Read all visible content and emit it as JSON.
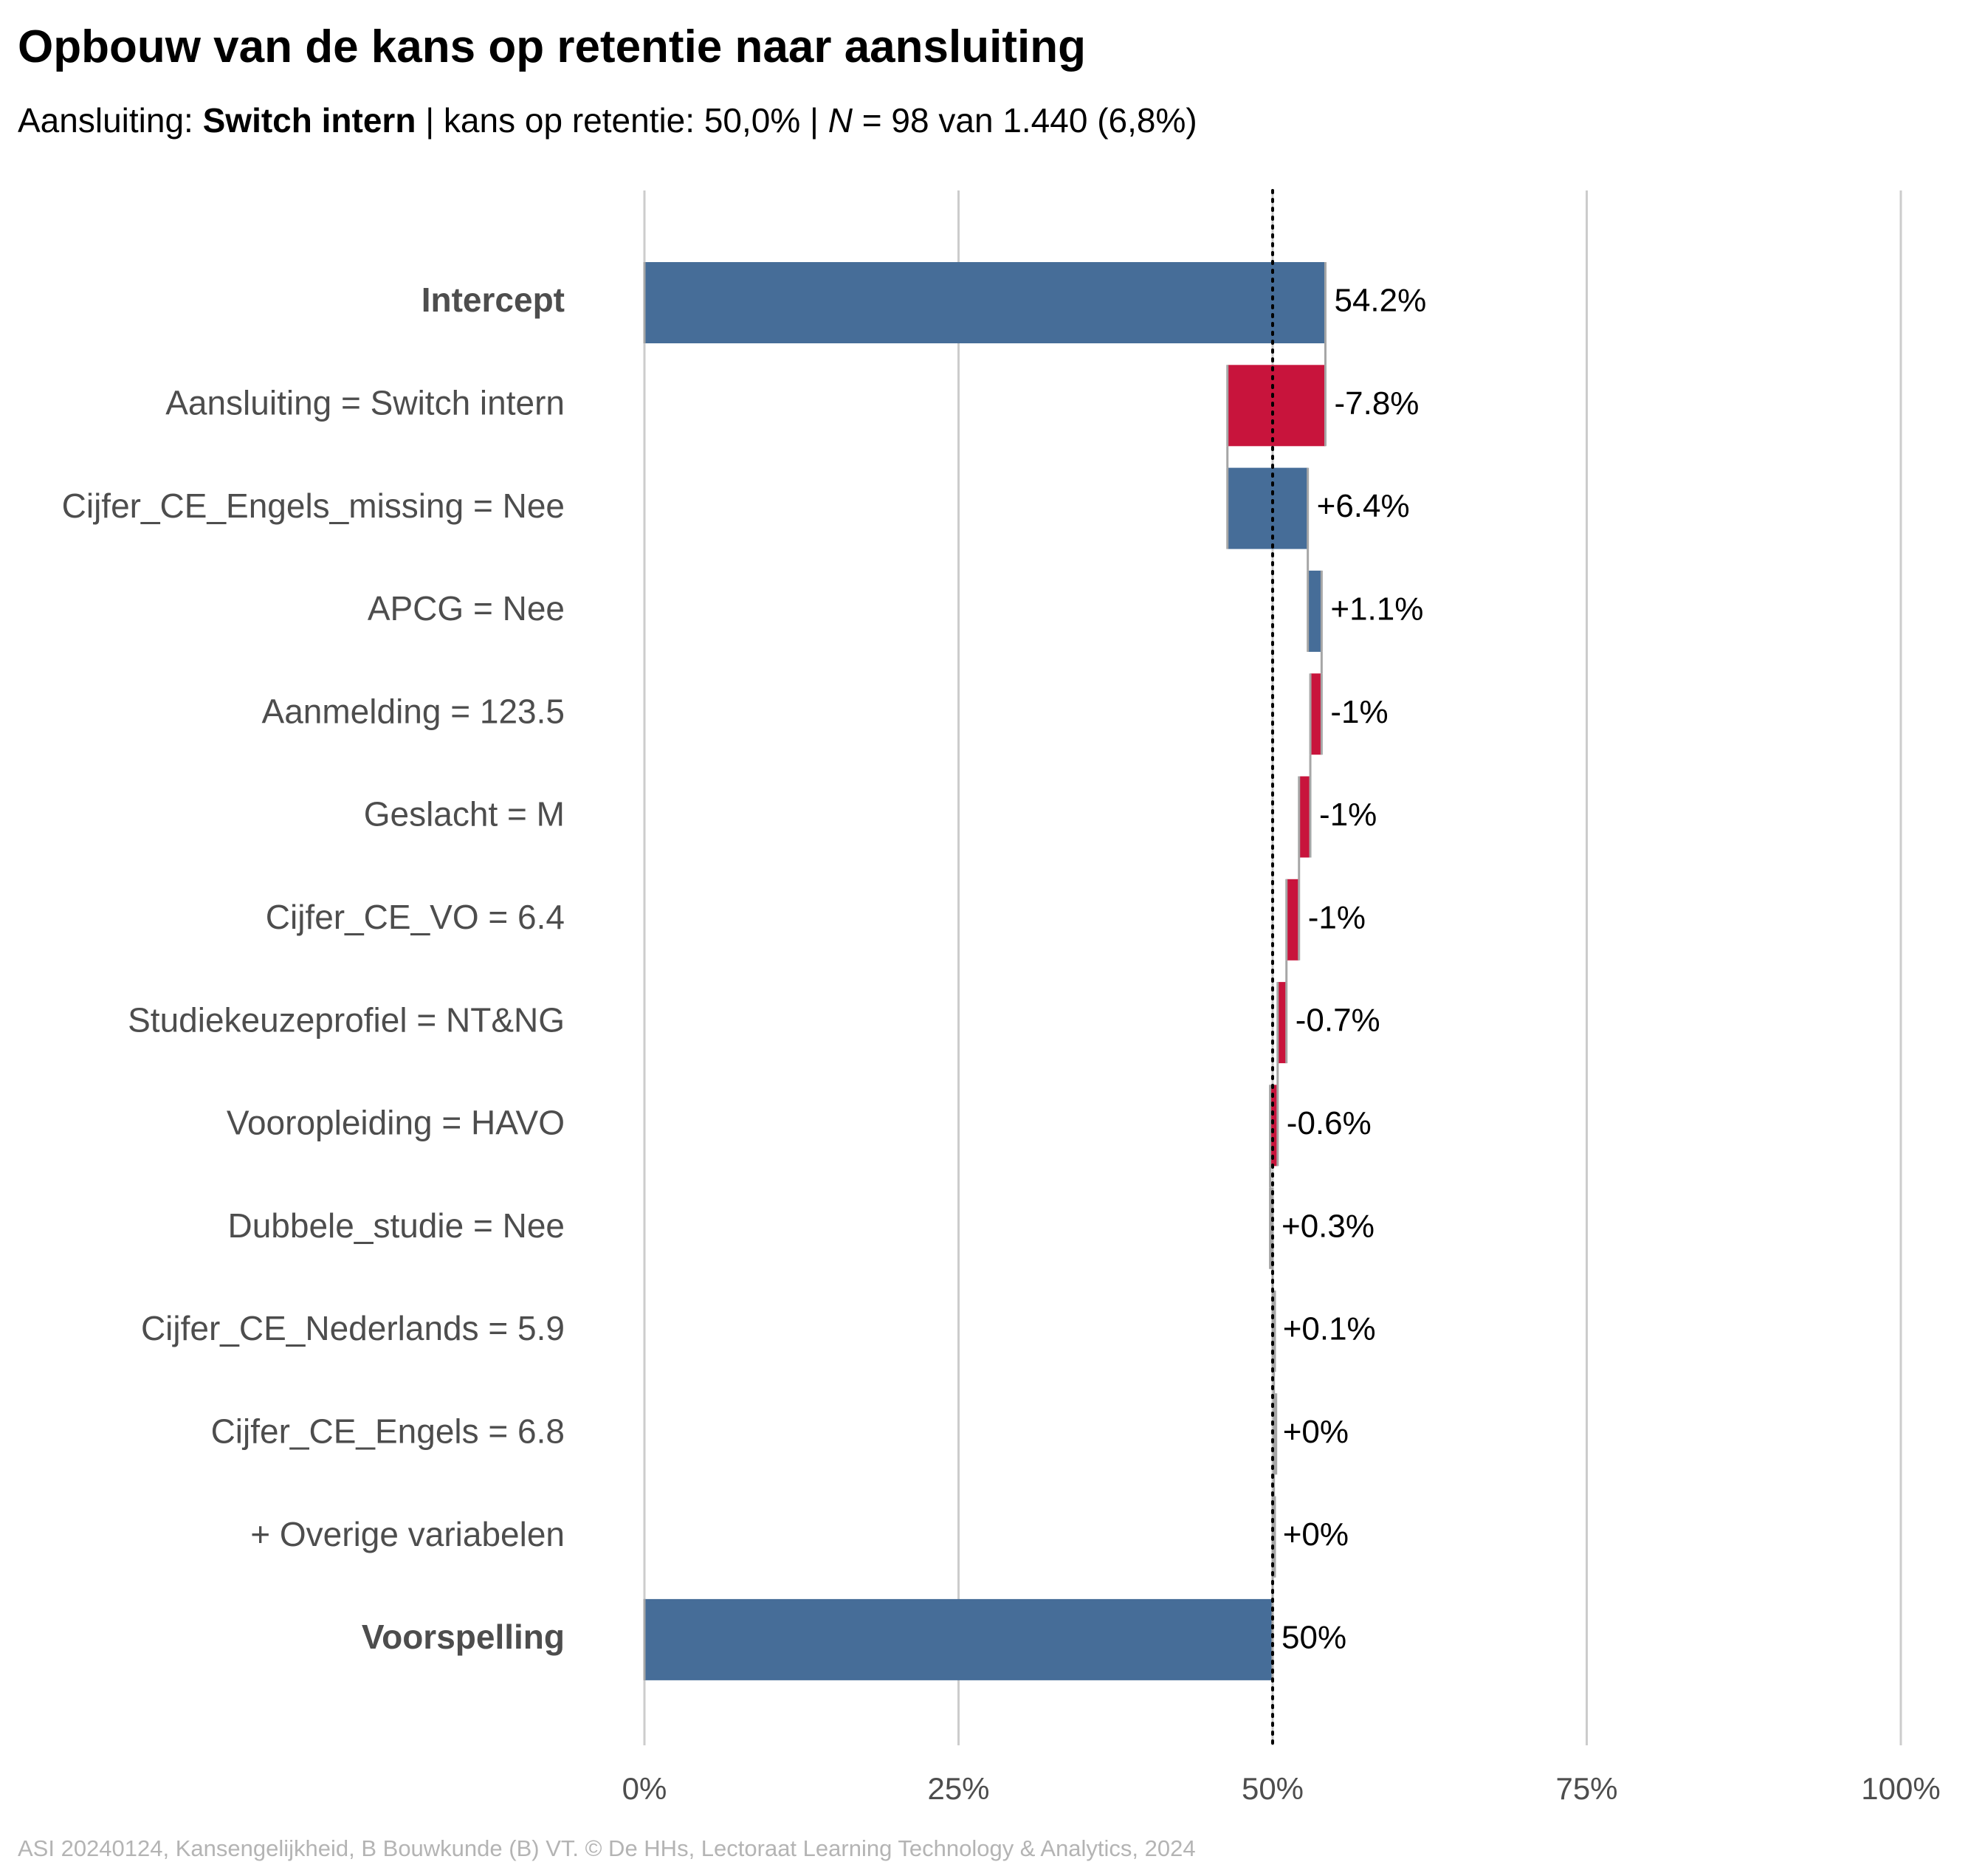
{
  "colors": {
    "positive": "#466d98",
    "negative": "#c8143c",
    "neutral": "#a6a6a6",
    "grid": "#cccccc",
    "connector": "#a6a6a6",
    "label_text": "#4d4d4d",
    "value_text": "#000000",
    "caption_text": "#b4b4b4"
  },
  "subtitle": {
    "prefix": "Aansluiting: ",
    "aansluiting": "Switch intern",
    "mid": " | kans op retentie: 50,0% | ",
    "n_symbol": "N",
    "suffix": " = 98 van 1.440 (6,8%)"
  },
  "caption": "ASI 20240124, Kansengelijkheid, B Bouwkunde (B) VT. © De HHs, Lectoraat Learning Technology & Analytics, 2024",
  "chart_data": {
    "type": "waterfall",
    "orientation": "horizontal",
    "title": "Opbouw van de kans op retentie naar aansluiting",
    "xlim": [
      0,
      100
    ],
    "x_ticks": [
      0,
      25,
      50,
      75,
      100
    ],
    "x_tick_labels": [
      "0%",
      "25%",
      "50%",
      "75%",
      "100%"
    ],
    "reference_line": 50,
    "grid": true,
    "rows": [
      {
        "label": "Intercept",
        "kind": "total",
        "start": 0,
        "end": 54.2,
        "value_label": "54.2%",
        "bold": true
      },
      {
        "label": "Aansluiting = Switch intern",
        "kind": "delta",
        "start": 54.2,
        "end": 46.4,
        "value_label": "-7.8%"
      },
      {
        "label": "Cijfer_CE_Engels_missing = Nee",
        "kind": "delta",
        "start": 46.4,
        "end": 52.8,
        "value_label": "+6.4%"
      },
      {
        "label": "APCG = Nee",
        "kind": "delta",
        "start": 52.8,
        "end": 53.9,
        "value_label": "+1.1%"
      },
      {
        "label": "Aanmelding = 123.5",
        "kind": "delta",
        "start": 53.9,
        "end": 53.0,
        "value_label": "-1%"
      },
      {
        "label": "Geslacht = M",
        "kind": "delta",
        "start": 53.0,
        "end": 52.1,
        "value_label": "-1%"
      },
      {
        "label": "Cijfer_CE_VO = 6.4",
        "kind": "delta",
        "start": 52.1,
        "end": 51.1,
        "value_label": "-1%"
      },
      {
        "label": "Studiekeuzeprofiel = NT&NG",
        "kind": "delta",
        "start": 51.1,
        "end": 50.4,
        "value_label": "-0.7%"
      },
      {
        "label": "Vooropleiding = HAVO",
        "kind": "delta",
        "start": 50.4,
        "end": 49.8,
        "value_label": "-0.6%"
      },
      {
        "label": "Dubbele_studie = Nee",
        "kind": "delta",
        "start": 49.8,
        "end": 50.0,
        "value_label": "+0.3%"
      },
      {
        "label": "Cijfer_CE_Nederlands = 5.9",
        "kind": "delta",
        "start": 50.0,
        "end": 50.1,
        "value_label": "+0.1%"
      },
      {
        "label": "Cijfer_CE_Engels = 6.8",
        "kind": "delta",
        "start": 50.1,
        "end": 50.1,
        "value_label": "+0%"
      },
      {
        "label": "+ Overige variabelen",
        "kind": "delta",
        "start": 50.1,
        "end": 50.0,
        "value_label": "+0%"
      },
      {
        "label": "Voorspelling",
        "kind": "total",
        "start": 0,
        "end": 50.0,
        "value_label": "50%",
        "bold": true
      }
    ]
  }
}
